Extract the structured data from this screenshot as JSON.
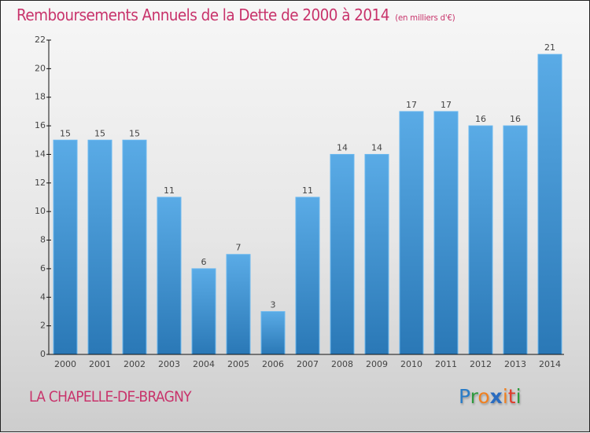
{
  "chart_data": {
    "type": "bar",
    "title": "Remboursements Annuels de la Dette de 2000 à 2014",
    "subtitle": "(en milliers d'€)",
    "xlabel": "",
    "ylabel": "",
    "categories": [
      "2000",
      "2001",
      "2002",
      "2003",
      "2004",
      "2005",
      "2006",
      "2007",
      "2008",
      "2009",
      "2010",
      "2011",
      "2012",
      "2013",
      "2014"
    ],
    "values": [
      15,
      15,
      15,
      11,
      6,
      7,
      3,
      11,
      14,
      14,
      17,
      17,
      16,
      16,
      21
    ],
    "ylim": [
      0,
      22
    ],
    "yticks": [
      0,
      2,
      4,
      6,
      8,
      10,
      12,
      14,
      16,
      18,
      20,
      22
    ],
    "grid": false,
    "legend": "none",
    "bar_color": "#3a8fd0"
  },
  "footer": {
    "city": "LA CHAPELLE-DE-BRAGNY",
    "logo_letters": [
      {
        "ch": "P",
        "color": "#2a7cc7"
      },
      {
        "ch": "r",
        "color": "#2e9a3e"
      },
      {
        "ch": "o",
        "color": "#f08020"
      },
      {
        "ch": "x",
        "color": "#2a6cc0"
      },
      {
        "ch": "i",
        "color": "#f08020"
      },
      {
        "ch": "t",
        "color": "#e03a2a"
      },
      {
        "ch": "i",
        "color": "#2e9a3e"
      }
    ]
  }
}
